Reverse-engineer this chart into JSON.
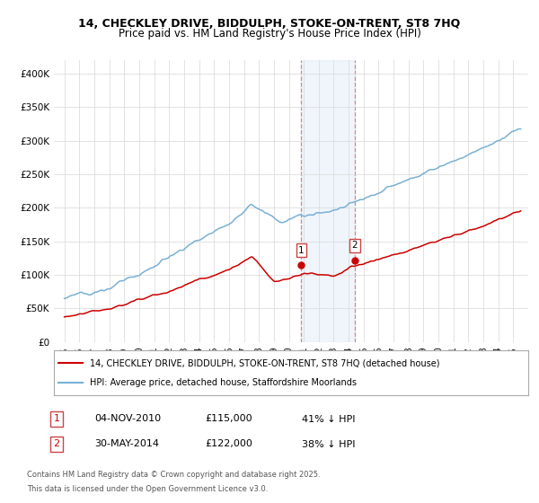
{
  "title": "14, CHECKLEY DRIVE, BIDDULPH, STOKE-ON-TRENT, ST8 7HQ",
  "subtitle": "Price paid vs. HM Land Registry's House Price Index (HPI)",
  "legend_label_red": "14, CHECKLEY DRIVE, BIDDULPH, STOKE-ON-TRENT, ST8 7HQ (detached house)",
  "legend_label_blue": "HPI: Average price, detached house, Staffordshire Moorlands",
  "annotation1_label": "1",
  "annotation1_date": "04-NOV-2010",
  "annotation1_price": "£115,000",
  "annotation1_pct": "41% ↓ HPI",
  "annotation2_label": "2",
  "annotation2_date": "30-MAY-2014",
  "annotation2_price": "£122,000",
  "annotation2_pct": "38% ↓ HPI",
  "footnote1": "Contains HM Land Registry data © Crown copyright and database right 2025.",
  "footnote2": "This data is licensed under the Open Government Licence v3.0.",
  "ylim": [
    0,
    420000
  ],
  "yticks": [
    0,
    50000,
    100000,
    150000,
    200000,
    250000,
    300000,
    350000,
    400000
  ],
  "ytick_labels": [
    "£0",
    "£50K",
    "£100K",
    "£150K",
    "£200K",
    "£250K",
    "£300K",
    "£350K",
    "£400K"
  ],
  "color_red": "#cc0000",
  "color_blue": "#7ab0d4",
  "purchase1_year": 2010.84,
  "purchase1_price": 115000,
  "purchase2_year": 2014.41,
  "purchase2_price": 122000,
  "shaded_region_start": 2010.84,
  "shaded_region_end": 2014.41,
  "xlim_start": 1994.3,
  "xlim_end": 2026.0
}
